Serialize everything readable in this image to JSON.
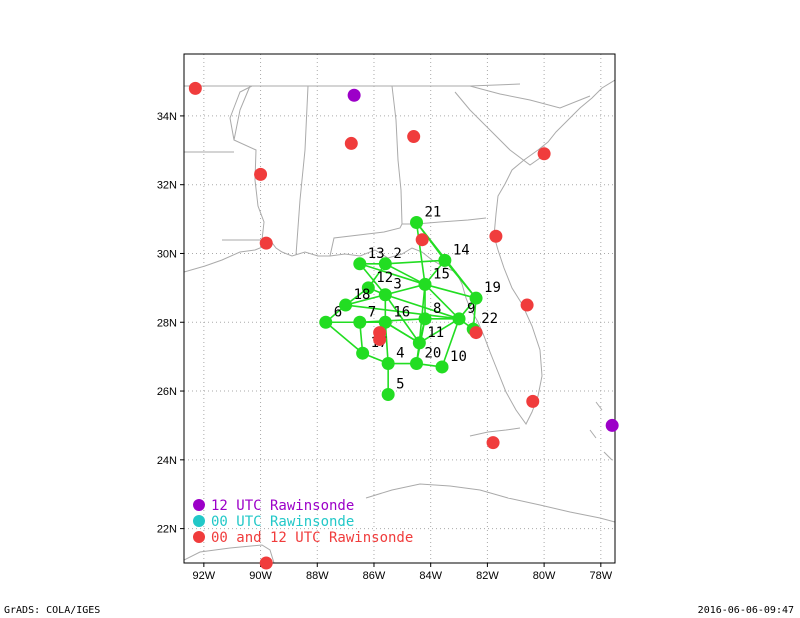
{
  "map": {
    "lon_range": [
      -92.7,
      -77.5
    ],
    "lat_range": [
      21.0,
      35.8
    ],
    "x_ticks": [
      {
        "lon": -92,
        "label": "92W"
      },
      {
        "lon": -90,
        "label": "90W"
      },
      {
        "lon": -88,
        "label": "88W"
      },
      {
        "lon": -86,
        "label": "86W"
      },
      {
        "lon": -84,
        "label": "84W"
      },
      {
        "lon": -82,
        "label": "82W"
      },
      {
        "lon": -80,
        "label": "80W"
      },
      {
        "lon": -78,
        "label": "78W"
      }
    ],
    "y_ticks": [
      {
        "lat": 22,
        "label": "22N"
      },
      {
        "lat": 24,
        "label": "24N"
      },
      {
        "lat": 26,
        "label": "26N"
      },
      {
        "lat": 28,
        "label": "28N"
      },
      {
        "lat": 30,
        "label": "30N"
      },
      {
        "lat": 32,
        "label": "32N"
      },
      {
        "lat": 34,
        "label": "34N"
      }
    ],
    "colors": {
      "green": "#22dd22",
      "red": "#f03c3c",
      "purple": "#9c00c8",
      "cyan": "#22c8c8",
      "coast": "#aaaaaa",
      "grid": "#aaaaaa"
    }
  },
  "dropsondes": [
    {
      "id": "2",
      "lon": -85.6,
      "lat": 29.7
    },
    {
      "id": "3",
      "lon": -85.6,
      "lat": 28.8
    },
    {
      "id": "4",
      "lon": -85.5,
      "lat": 26.8
    },
    {
      "id": "5",
      "lon": -85.5,
      "lat": 25.9
    },
    {
      "id": "6",
      "lon": -87.7,
      "lat": 28.0
    },
    {
      "id": "7",
      "lon": -86.5,
      "lat": 28.0
    },
    {
      "id": "8",
      "lon": -84.2,
      "lat": 28.1
    },
    {
      "id": "9",
      "lon": -83.0,
      "lat": 28.1
    },
    {
      "id": "10",
      "lon": -83.6,
      "lat": 26.7
    },
    {
      "id": "11",
      "lon": -84.4,
      "lat": 27.4
    },
    {
      "id": "12",
      "lon": -86.2,
      "lat": 29.0
    },
    {
      "id": "13",
      "lon": -86.5,
      "lat": 29.7
    },
    {
      "id": "14",
      "lon": -83.5,
      "lat": 29.8
    },
    {
      "id": "15",
      "lon": -84.2,
      "lat": 29.1
    },
    {
      "id": "16",
      "lon": -85.6,
      "lat": 28.0
    },
    {
      "id": "17",
      "lon": -86.4,
      "lat": 27.1
    },
    {
      "id": "18",
      "lon": -87.0,
      "lat": 28.5
    },
    {
      "id": "19",
      "lon": -82.4,
      "lat": 28.7
    },
    {
      "id": "20",
      "lon": -84.5,
      "lat": 26.8
    },
    {
      "id": "21",
      "lon": -84.5,
      "lat": 30.9
    },
    {
      "id": "22",
      "lon": -82.5,
      "lat": 27.8
    }
  ],
  "track": [
    [
      "21",
      "14"
    ],
    [
      "14",
      "15"
    ],
    [
      "15",
      "13"
    ],
    [
      "13",
      "2"
    ],
    [
      "2",
      "14"
    ],
    [
      "2",
      "12"
    ],
    [
      "12",
      "3"
    ],
    [
      "13",
      "3"
    ],
    [
      "3",
      "15"
    ],
    [
      "2",
      "15"
    ],
    [
      "21",
      "15"
    ],
    [
      "21",
      "19"
    ],
    [
      "14",
      "19"
    ],
    [
      "15",
      "19"
    ],
    [
      "19",
      "9"
    ],
    [
      "15",
      "9"
    ],
    [
      "15",
      "8"
    ],
    [
      "3",
      "9"
    ],
    [
      "18",
      "3"
    ],
    [
      "18",
      "9"
    ],
    [
      "6",
      "18"
    ],
    [
      "6",
      "7"
    ],
    [
      "7",
      "8"
    ],
    [
      "8",
      "9"
    ],
    [
      "6",
      "17"
    ],
    [
      "17",
      "4"
    ],
    [
      "4",
      "5"
    ],
    [
      "4",
      "20"
    ],
    [
      "20",
      "10"
    ],
    [
      "10",
      "9"
    ],
    [
      "20",
      "8"
    ],
    [
      "11",
      "9"
    ],
    [
      "11",
      "16"
    ],
    [
      "7",
      "16"
    ],
    [
      "16",
      "4"
    ],
    [
      "16",
      "11"
    ],
    [
      "3",
      "11"
    ],
    [
      "11",
      "20"
    ],
    [
      "7",
      "17"
    ],
    [
      "12",
      "18"
    ],
    [
      "9",
      "22"
    ],
    [
      "19",
      "22"
    ],
    [
      "8",
      "11"
    ],
    [
      "15",
      "11"
    ],
    [
      "3",
      "16"
    ]
  ],
  "rawinsondes_12": [
    {
      "lon": -86.7,
      "lat": 34.6
    },
    {
      "lon": -77.6,
      "lat": 25.0
    }
  ],
  "rawinsondes_00_12": [
    {
      "lon": -92.3,
      "lat": 34.8
    },
    {
      "lon": -86.8,
      "lat": 33.2
    },
    {
      "lon": -84.6,
      "lat": 33.4
    },
    {
      "lon": -80.0,
      "lat": 32.9
    },
    {
      "lon": -90.0,
      "lat": 32.3
    },
    {
      "lon": -89.8,
      "lat": 30.3
    },
    {
      "lon": -84.3,
      "lat": 30.4
    },
    {
      "lon": -81.7,
      "lat": 30.5
    },
    {
      "lon": -80.6,
      "lat": 28.5
    },
    {
      "lon": -82.4,
      "lat": 27.7
    },
    {
      "lon": -85.8,
      "lat": 27.7
    },
    {
      "lon": -85.8,
      "lat": 27.5
    },
    {
      "lon": -80.4,
      "lat": 25.7
    },
    {
      "lon": -81.8,
      "lat": 24.5
    },
    {
      "lon": -89.8,
      "lat": 21.0
    }
  ],
  "legend": [
    {
      "label": "12 UTC Rawinsonde",
      "color_key": "purple"
    },
    {
      "label": "00 UTC Rawinsonde",
      "color_key": "cyan"
    },
    {
      "label": "00 and 12 UTC Rawinsonde",
      "color_key": "red"
    }
  ],
  "footer": {
    "left": "GrADS: COLA/IGES",
    "right": "2016-06-06-09:47"
  }
}
